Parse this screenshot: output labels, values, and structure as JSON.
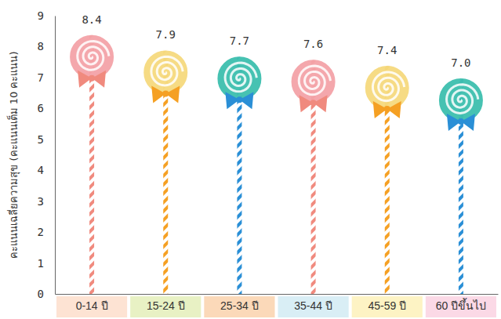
{
  "chart_data": {
    "type": "bar",
    "y_label": "คะแนนเฉลี่ยความสุข (คะแนนเต็ม 10 คะแนน)",
    "categories": [
      "0-14 ปี",
      "15-24 ปี",
      "25-34 ปี",
      "35-44 ปี",
      "45-59 ปี",
      "60 ปีขึ้นไป"
    ],
    "values": [
      8.4,
      7.9,
      7.7,
      7.6,
      7.4,
      7.0
    ],
    "value_labels": [
      "8.4",
      "7.9",
      "7.7",
      "7.6",
      "7.4",
      "7.0"
    ],
    "colors": [
      "#f4a3a8",
      "#f6da7e",
      "#3dbfae",
      "#f4a3a8",
      "#f6da7e",
      "#3dbfae"
    ],
    "ylim": [
      0,
      9
    ],
    "yticks": [
      0,
      1,
      2,
      3,
      4,
      5,
      6,
      7,
      8,
      9
    ],
    "grid": false,
    "data_labels": true
  }
}
